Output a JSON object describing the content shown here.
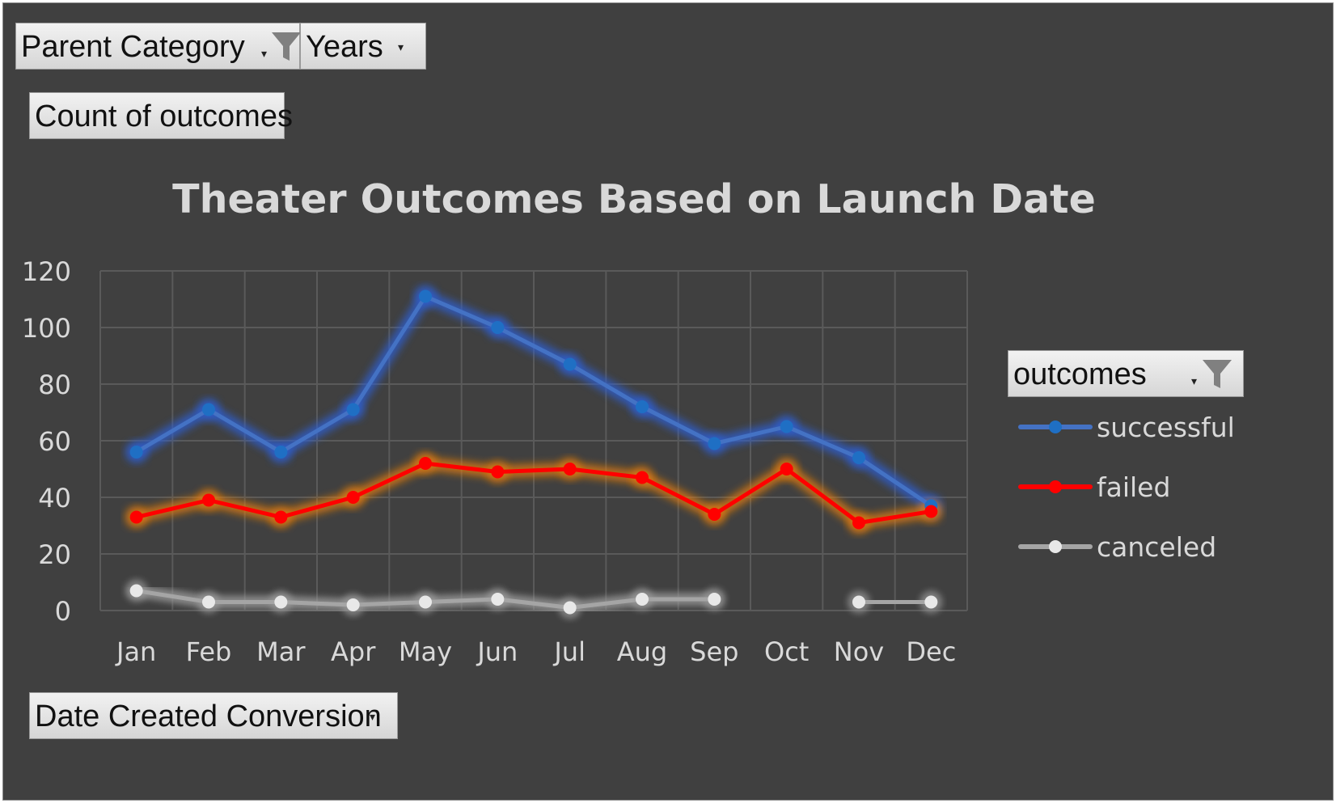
{
  "filters": {
    "parent_category": "Parent Category",
    "years": "Years",
    "value_field": "Count of outcomes",
    "legend_field": "outcomes",
    "axis_field": "Date Created Conversion"
  },
  "icons": {
    "funnel": "filter-funnel-icon",
    "dropdown": "dropdown-arrow-icon"
  },
  "colors": {
    "background": "#404040",
    "grid": "#5a5a5a",
    "text": "#d9d9d9",
    "successful": "#4472c4",
    "failed": "#ff0000",
    "canceled": "#a5a5a5"
  },
  "chart_data": {
    "type": "line",
    "title": "Theater Outcomes Based on Launch Date",
    "categories": [
      "Jan",
      "Feb",
      "Mar",
      "Apr",
      "May",
      "Jun",
      "Jul",
      "Aug",
      "Sep",
      "Oct",
      "Nov",
      "Dec"
    ],
    "yticks": [
      "0",
      "20",
      "40",
      "60",
      "80",
      "100",
      "120"
    ],
    "ylim": [
      0,
      120
    ],
    "grid": true,
    "legend_position": "right",
    "series": [
      {
        "name": "successful",
        "color": "#4472c4",
        "values": [
          56,
          71,
          56,
          71,
          111,
          100,
          87,
          72,
          59,
          65,
          54,
          37
        ]
      },
      {
        "name": "failed",
        "color": "#ff0000",
        "values": [
          33,
          39,
          33,
          40,
          52,
          49,
          50,
          47,
          34,
          50,
          31,
          35
        ]
      },
      {
        "name": "canceled",
        "color": "#a5a5a5",
        "values": [
          7,
          3,
          3,
          2,
          3,
          4,
          1,
          4,
          4,
          null,
          3,
          3
        ]
      }
    ]
  }
}
